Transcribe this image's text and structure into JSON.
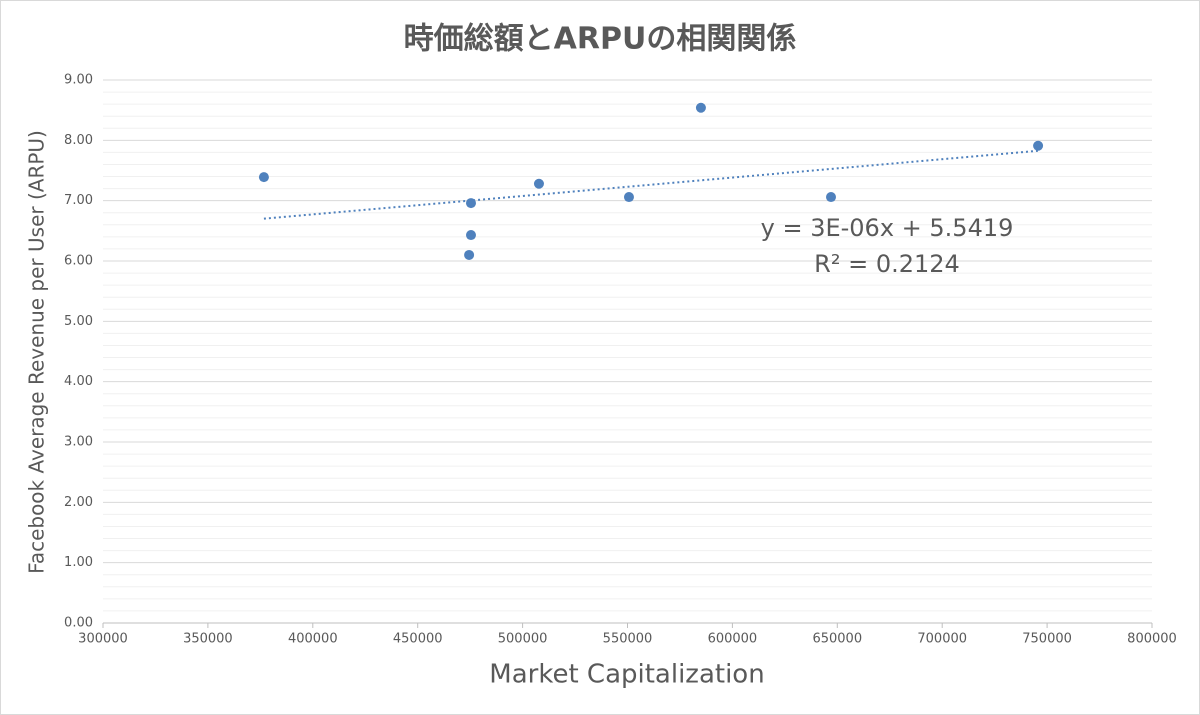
{
  "chart_data": {
    "type": "scatter",
    "title": "時価総額とARPUの相関関係",
    "x_label": "Market Capitalization",
    "y_label": "Facebook Average Revenue per User (ARPU)",
    "series": [
      {
        "color": "#4f81bd",
        "x": [
          376700,
          475400,
          475400,
          474500,
          507800,
          550700,
          585000,
          647000,
          745700
        ],
        "values": [
          7.39,
          6.96,
          6.43,
          6.1,
          7.28,
          7.06,
          8.54,
          7.06,
          7.91
        ]
      }
    ],
    "trendline": {
      "equation": "y = 3E-06x + 5.5419",
      "r_squared": "R² = 0.2124"
    },
    "xlim": [
      300000,
      800000
    ],
    "xticks": [
      300000,
      350000,
      400000,
      450000,
      500000,
      550000,
      600000,
      650000,
      700000,
      750000,
      800000
    ],
    "ylim": [
      0,
      9
    ],
    "yticks": [
      {
        "value": 0,
        "label": "0.00"
      },
      {
        "value": 1,
        "label": "1.00"
      },
      {
        "value": 2,
        "label": "2.00"
      },
      {
        "value": 3,
        "label": "3.00"
      },
      {
        "value": 4,
        "label": "4.00"
      },
      {
        "value": 5,
        "label": "5.00"
      },
      {
        "value": 6,
        "label": "6.00"
      },
      {
        "value": 7,
        "label": "7.00"
      },
      {
        "value": 8,
        "label": "8.00"
      },
      {
        "value": 9,
        "label": "9.00"
      }
    ],
    "grid": true,
    "y_minor_divisions": 5
  }
}
